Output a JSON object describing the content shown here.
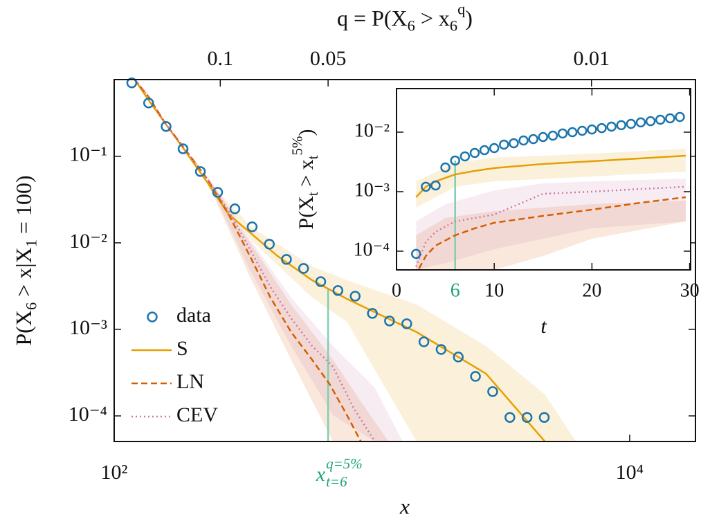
{
  "chart_data": [
    {
      "type": "line",
      "xlog": true,
      "ylog": true,
      "xlabel": "x",
      "ylabel": {
        "pieces": [
          {
            "t": "P(X"
          },
          {
            "t": "6",
            "sub": true
          },
          {
            "t": " > x|X"
          },
          {
            "t": "1",
            "sub": true
          },
          {
            "t": " = 100)"
          }
        ]
      },
      "xlim": [
        100,
        18000
      ],
      "ylim": [
        5.06e-05,
        0.77
      ],
      "xticks": [
        {
          "value": 100,
          "label": "10²"
        },
        {
          "value": 10000,
          "label": "10⁴"
        }
      ],
      "yticks": [
        {
          "value": 0.1,
          "label": "10⁻¹"
        },
        {
          "value": 0.01,
          "label": "10⁻²"
        },
        {
          "value": 0.001,
          "label": "10⁻³"
        },
        {
          "value": 0.0001,
          "label": "10⁻⁴"
        }
      ],
      "top_axis": {
        "label": {
          "pieces": [
            {
              "t": "q = P(X"
            },
            {
              "t": "6",
              "sub": true
            },
            {
              "t": " > x"
            },
            {
              "t": "6",
              "sub": true
            },
            {
              "t": "q",
              "sup": true
            },
            {
              "t": ")"
            }
          ]
        },
        "ticks": [
          {
            "value": 258,
            "label": "0.1"
          },
          {
            "value": 676,
            "label": "0.05"
          },
          {
            "value": 7110,
            "label": "0.01"
          }
        ]
      },
      "legend": "lower left",
      "band_opacity": 0.14,
      "series": [
        {
          "name": "data",
          "style": "markers",
          "color": "#1b75ab",
          "x": [
            117,
            136,
            159,
            185,
            216,
            252,
            294,
            343,
            400,
            466,
            543,
            633,
            738,
            861,
            1004,
            1170,
            1365,
            1591,
            1855,
            2163,
            2522,
            2941,
            3429,
            3998,
            4662
          ],
          "values": [
            0.705,
            0.413,
            0.221,
            0.122,
            0.0667,
            0.0384,
            0.0247,
            0.0153,
            0.00964,
            0.00643,
            0.00506,
            0.00356,
            0.00281,
            0.00242,
            0.00153,
            0.00125,
            0.00116,
            0.000718,
            0.000586,
            0.000479,
            0.000286,
            0.000191,
            9.6e-05,
            9.6e-05,
            9.6e-05
          ]
        },
        {
          "name": "S",
          "style": "solid",
          "color": "#e69f00",
          "x": [
            120,
            136,
            159,
            186,
            231,
            278,
            346,
            430,
            586,
            800,
            1490,
            2770,
            4690
          ],
          "values": [
            0.773,
            0.445,
            0.233,
            0.122,
            0.0488,
            0.0213,
            0.01225,
            0.00705,
            0.0037,
            0.00225,
            0.00093,
            0.000308,
            5.06e-05
          ],
          "band": {
            "x": [
              231,
              346,
              586,
              800,
              1490,
              2770,
              4690,
              6190
            ],
            "upper": [
              0.0515,
              0.0147,
              0.00535,
              0.0037,
              0.00194,
              0.000643,
              0.000177,
              5.06e-05
            ],
            "lower": [
              0.0445,
              0.0102,
              0.00233,
              0.00122,
              5.06e-05,
              5.06e-05,
              5.06e-05,
              5.06e-05
            ]
          }
        },
        {
          "name": "LN",
          "style": "dashed",
          "color": "#d55e00",
          "x": [
            120,
            136,
            159,
            192,
            231,
            278,
            336,
            404,
            486,
            586,
            685,
            800,
            906
          ],
          "values": [
            0.773,
            0.488,
            0.233,
            0.112,
            0.0535,
            0.0213,
            0.00705,
            0.00233,
            0.00093,
            0.000445,
            0.000233,
            0.000102,
            5.06e-05
          ],
          "band": {
            "x": [
              231,
              336,
              486,
              706,
              906,
              1161
            ],
            "upper": [
              0.0555,
              0.0102,
              0.00194,
              0.000445,
              0.000147,
              5.06e-05
            ],
            "lower": [
              0.0488,
              0.00406,
              0.000445,
              5.06e-05,
              5.06e-05,
              5.06e-05
            ]
          }
        },
        {
          "name": "CEV",
          "style": "dotted",
          "color": "#cc79a7",
          "x": [
            120,
            136,
            159,
            192,
            231,
            278,
            336,
            404,
            486,
            586,
            706,
            851,
            1026
          ],
          "values": [
            0.773,
            0.488,
            0.233,
            0.112,
            0.0535,
            0.0233,
            0.00848,
            0.00308,
            0.00134,
            0.000643,
            0.00037,
            0.000122,
            5.06e-05
          ],
          "band": {
            "x": [
              231,
              336,
              486,
              706,
              1026,
              1315
            ],
            "upper": [
              0.0586,
              0.01117,
              0.00233,
              0.000643,
              0.000213,
              5.06e-05
            ],
            "lower": [
              0.0515,
              0.00488,
              0.000643,
              0.000102,
              5.06e-05,
              5.06e-05
            ]
          }
        }
      ],
      "marker_line": {
        "x": 676,
        "y": 0.0029,
        "color": "#7fcfb0"
      },
      "annotation": {
        "text": "x",
        "sup": "q=5%",
        "sub": "t=6",
        "x": 676,
        "color": "#1aa37a"
      }
    },
    {
      "type": "line",
      "xlog": false,
      "ylog": true,
      "xlabel": "t",
      "ylabel": {
        "pieces": [
          {
            "t": "P(X"
          },
          {
            "t": "t",
            "sub": true
          },
          {
            "t": " > x"
          },
          {
            "t": "t",
            "sub": true
          },
          {
            "t": "5%",
            "sup": true
          },
          {
            "t": ")"
          }
        ]
      },
      "xlim": [
        0,
        30.1
      ],
      "ylim": [
        4.85e-05,
        0.054
      ],
      "xticks": [
        0,
        10,
        20,
        30
      ],
      "highlight_tick": {
        "value": 6,
        "color": "#1aa37a"
      },
      "yticks": [
        {
          "value": 0.01,
          "label": "10⁻²"
        },
        {
          "value": 0.001,
          "label": "10⁻³"
        },
        {
          "value": 0.0001,
          "label": "10⁻⁴"
        }
      ],
      "band_opacity": 0.14,
      "series": [
        {
          "style": "markers",
          "color": "#1b75ab",
          "x": [
            2,
            3,
            4,
            5,
            6,
            7,
            8,
            9,
            10,
            11,
            12,
            13,
            14,
            15,
            16,
            17,
            18,
            19,
            20,
            21,
            22,
            23,
            24,
            25,
            26,
            27,
            28,
            29
          ],
          "values": [
            9e-05,
            0.00121,
            0.00127,
            0.00255,
            0.00334,
            0.00392,
            0.00448,
            0.00499,
            0.0054,
            0.00618,
            0.00652,
            0.00725,
            0.00765,
            0.0083,
            0.00875,
            0.0095,
            0.01,
            0.01055,
            0.0111,
            0.0117,
            0.0124,
            0.0131,
            0.0138,
            0.0146,
            0.0153,
            0.0162,
            0.0171,
            0.018
          ]
        },
        {
          "style": "solid",
          "color": "#e69f00",
          "x": [
            2,
            3,
            4,
            6,
            8,
            10,
            15,
            20,
            25,
            29.6
          ],
          "values": [
            0.000807,
            0.00121,
            0.00149,
            0.00195,
            0.00223,
            0.00249,
            0.00292,
            0.00325,
            0.00362,
            0.00402
          ],
          "band": {
            "x": [
              2,
              6,
              10,
              20,
              29.6
            ],
            "upper": [
              0.00149,
              0.00308,
              0.00372,
              0.00436,
              0.00526
            ],
            "lower": [
              0.00054,
              0.00121,
              0.00149,
              0.0018,
              0.00217
            ]
          }
        },
        {
          "style": "dashed",
          "color": "#d55e00",
          "x": [
            2.3,
            3,
            4,
            6,
            8,
            10,
            15,
            20,
            25,
            29.6
          ],
          "values": [
            5.1e-05,
            8.3e-05,
            0.000124,
            0.000185,
            0.000242,
            0.0003,
            0.000392,
            0.000499,
            0.000652,
            0.000807
          ],
          "band": {
            "x": [
              2,
              5,
              10,
              15,
              20,
              29.6
            ],
            "upper": [
              0.000185,
              0.000361,
              0.000472,
              0.00054,
              0.000618,
              0.000706
            ],
            "lower": [
              4.85e-05,
              4.85e-05,
              4.85e-05,
              8.3e-05,
              0.000162,
              0.000316
            ]
          }
        },
        {
          "style": "dotted",
          "color": "#cc79a7",
          "x": [
            2,
            3,
            4,
            6,
            8,
            10,
            15,
            20,
            25,
            29.6
          ],
          "values": [
            5.5e-05,
            0.000142,
            0.000212,
            0.000316,
            0.000361,
            0.000413,
            0.000923,
            0.001,
            0.00111,
            0.00121
          ],
          "band": {
            "x": [
              2,
              5,
              10,
              15,
              20,
              29.6
            ],
            "upper": [
              0.000316,
              0.000618,
              0.00105,
              0.00138,
              0.00149,
              0.00166
            ],
            "lower": [
              4.85e-05,
              6.3e-05,
              0.000108,
              0.000162,
              0.000242,
              0.000316
            ]
          }
        }
      ],
      "marker_line": {
        "x": 6,
        "y": 0.00334,
        "color": "#7fcfb0"
      }
    }
  ]
}
